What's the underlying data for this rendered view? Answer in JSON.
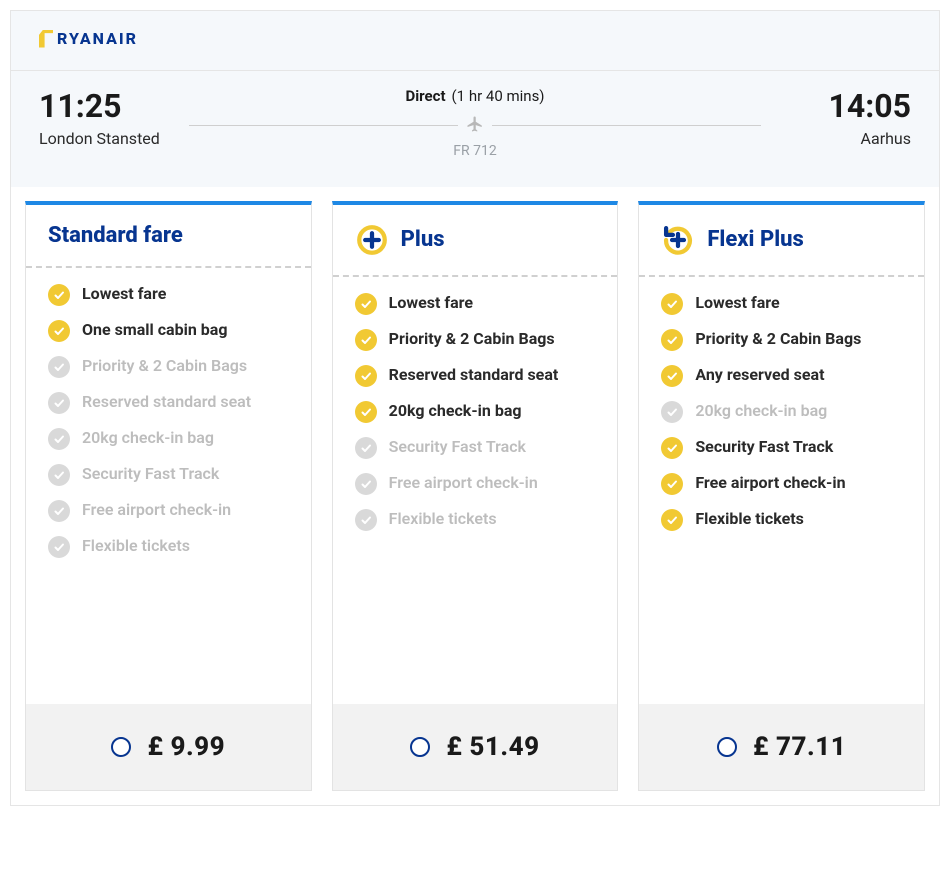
{
  "airline": {
    "name": "RYANAIR"
  },
  "flight": {
    "direct_label": "Direct",
    "duration": "(1 hr 40 mins)",
    "flight_number": "FR 712",
    "departure": {
      "time": "11:25",
      "airport": "London Stansted"
    },
    "arrival": {
      "time": "14:05",
      "airport": "Aarhus"
    }
  },
  "colors": {
    "brand_blue": "#073590",
    "accent_yellow": "#f1c933",
    "top_border": "#1e88e5",
    "muted_grey": "#bdbdbd"
  },
  "feature_labels": {
    "lowest_fare": "Lowest fare",
    "one_small_bag": "One small cabin bag",
    "priority_2bags": "Priority & 2 Cabin Bags",
    "reserved_std_seat": "Reserved standard seat",
    "any_reserved_seat": "Any reserved seat",
    "checkin_bag_20kg": "20kg check-in bag",
    "fast_track": "Security Fast Track",
    "free_airport_checkin": "Free airport check-in",
    "flexible_tickets": "Flexible tickets"
  },
  "fares": [
    {
      "id": "standard",
      "name": "Standard fare",
      "icon": "none",
      "price": "£ 9.99",
      "features": [
        {
          "key": "lowest_fare",
          "included": true
        },
        {
          "key": "one_small_bag",
          "included": true
        },
        {
          "key": "priority_2bags",
          "included": false
        },
        {
          "key": "reserved_std_seat",
          "included": false
        },
        {
          "key": "checkin_bag_20kg",
          "included": false
        },
        {
          "key": "fast_track",
          "included": false
        },
        {
          "key": "free_airport_checkin",
          "included": false
        },
        {
          "key": "flexible_tickets",
          "included": false
        }
      ]
    },
    {
      "id": "plus",
      "name": "Plus",
      "icon": "plus",
      "price": "£ 51.49",
      "features": [
        {
          "key": "lowest_fare",
          "included": true
        },
        {
          "key": "priority_2bags",
          "included": true
        },
        {
          "key": "reserved_std_seat",
          "included": true
        },
        {
          "key": "checkin_bag_20kg",
          "included": true
        },
        {
          "key": "fast_track",
          "included": false
        },
        {
          "key": "free_airport_checkin",
          "included": false
        },
        {
          "key": "flexible_tickets",
          "included": false
        }
      ]
    },
    {
      "id": "flexi",
      "name": "Flexi Plus",
      "icon": "flexi",
      "price": "£ 77.11",
      "features": [
        {
          "key": "lowest_fare",
          "included": true
        },
        {
          "key": "priority_2bags",
          "included": true
        },
        {
          "key": "any_reserved_seat",
          "included": true
        },
        {
          "key": "checkin_bag_20kg",
          "included": false
        },
        {
          "key": "fast_track",
          "included": true
        },
        {
          "key": "free_airport_checkin",
          "included": true
        },
        {
          "key": "flexible_tickets",
          "included": true
        }
      ]
    }
  ]
}
